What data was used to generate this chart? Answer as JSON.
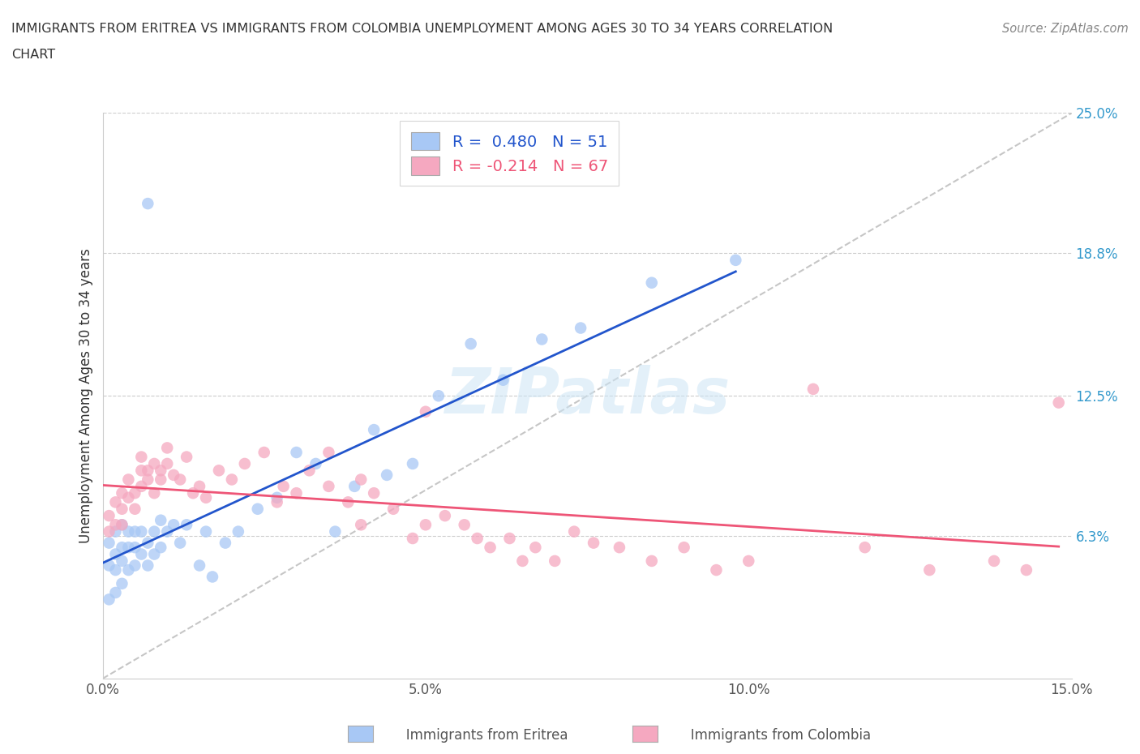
{
  "title_line1": "IMMIGRANTS FROM ERITREA VS IMMIGRANTS FROM COLOMBIA UNEMPLOYMENT AMONG AGES 30 TO 34 YEARS CORRELATION",
  "title_line2": "CHART",
  "source": "Source: ZipAtlas.com",
  "ylabel": "Unemployment Among Ages 30 to 34 years",
  "xlim": [
    0.0,
    0.15
  ],
  "ylim": [
    0.0,
    0.25
  ],
  "eritrea_R": 0.48,
  "eritrea_N": 51,
  "colombia_R": -0.214,
  "colombia_N": 67,
  "eritrea_color": "#a8c8f5",
  "colombia_color": "#f5a8c0",
  "eritrea_line_color": "#2255cc",
  "colombia_line_color": "#ee5577",
  "diagonal_color": "#c0c0c0",
  "eritrea_x": [
    0.001,
    0.001,
    0.001,
    0.002,
    0.002,
    0.002,
    0.002,
    0.003,
    0.003,
    0.003,
    0.003,
    0.004,
    0.004,
    0.004,
    0.005,
    0.005,
    0.005,
    0.006,
    0.006,
    0.007,
    0.007,
    0.007,
    0.008,
    0.008,
    0.009,
    0.009,
    0.01,
    0.011,
    0.012,
    0.013,
    0.015,
    0.016,
    0.017,
    0.019,
    0.021,
    0.024,
    0.027,
    0.03,
    0.033,
    0.036,
    0.039,
    0.042,
    0.044,
    0.048,
    0.052,
    0.057,
    0.062,
    0.068,
    0.074,
    0.085,
    0.098
  ],
  "eritrea_y": [
    0.035,
    0.05,
    0.06,
    0.038,
    0.048,
    0.055,
    0.065,
    0.042,
    0.052,
    0.058,
    0.068,
    0.048,
    0.058,
    0.065,
    0.05,
    0.058,
    0.065,
    0.055,
    0.065,
    0.05,
    0.06,
    0.21,
    0.055,
    0.065,
    0.058,
    0.07,
    0.065,
    0.068,
    0.06,
    0.068,
    0.05,
    0.065,
    0.045,
    0.06,
    0.065,
    0.075,
    0.08,
    0.1,
    0.095,
    0.065,
    0.085,
    0.11,
    0.09,
    0.095,
    0.125,
    0.148,
    0.132,
    0.15,
    0.155,
    0.175,
    0.185
  ],
  "colombia_x": [
    0.001,
    0.001,
    0.002,
    0.002,
    0.003,
    0.003,
    0.003,
    0.004,
    0.004,
    0.005,
    0.005,
    0.006,
    0.006,
    0.006,
    0.007,
    0.007,
    0.008,
    0.008,
    0.009,
    0.009,
    0.01,
    0.01,
    0.011,
    0.012,
    0.013,
    0.014,
    0.015,
    0.016,
    0.018,
    0.02,
    0.022,
    0.025,
    0.027,
    0.028,
    0.03,
    0.032,
    0.035,
    0.035,
    0.038,
    0.04,
    0.04,
    0.042,
    0.045,
    0.048,
    0.05,
    0.05,
    0.053,
    0.056,
    0.058,
    0.06,
    0.063,
    0.065,
    0.067,
    0.07,
    0.073,
    0.076,
    0.08,
    0.085,
    0.09,
    0.095,
    0.1,
    0.11,
    0.118,
    0.128,
    0.138,
    0.143,
    0.148
  ],
  "colombia_y": [
    0.072,
    0.065,
    0.078,
    0.068,
    0.082,
    0.075,
    0.068,
    0.088,
    0.08,
    0.082,
    0.075,
    0.092,
    0.085,
    0.098,
    0.088,
    0.092,
    0.082,
    0.095,
    0.088,
    0.092,
    0.095,
    0.102,
    0.09,
    0.088,
    0.098,
    0.082,
    0.085,
    0.08,
    0.092,
    0.088,
    0.095,
    0.1,
    0.078,
    0.085,
    0.082,
    0.092,
    0.1,
    0.085,
    0.078,
    0.068,
    0.088,
    0.082,
    0.075,
    0.062,
    0.068,
    0.118,
    0.072,
    0.068,
    0.062,
    0.058,
    0.062,
    0.052,
    0.058,
    0.052,
    0.065,
    0.06,
    0.058,
    0.052,
    0.058,
    0.048,
    0.052,
    0.128,
    0.058,
    0.048,
    0.052,
    0.048,
    0.122
  ]
}
